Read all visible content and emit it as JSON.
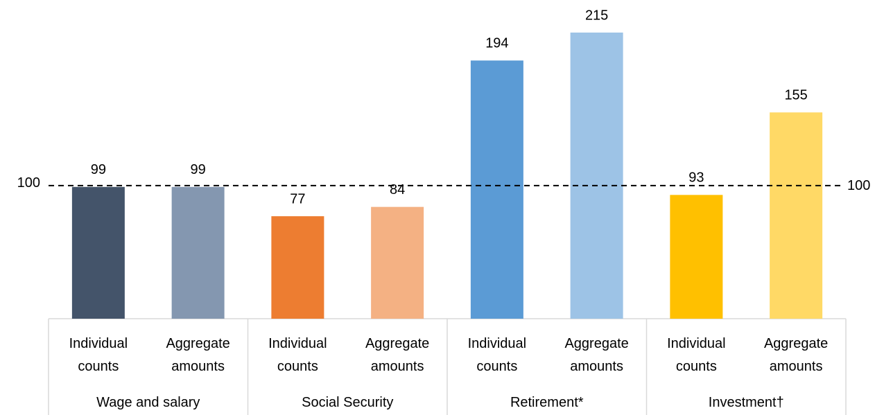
{
  "chart_data": {
    "type": "bar",
    "categories": [
      "Individual counts",
      "Aggregate amounts",
      "Individual counts",
      "Aggregate amounts",
      "Individual counts",
      "Aggregate amounts",
      "Individual counts",
      "Aggregate amounts"
    ],
    "groups": [
      "Wage and salary",
      "Social Security",
      "Retirement*",
      "Investment†"
    ],
    "values": [
      99,
      99,
      77,
      84,
      194,
      215,
      93,
      155
    ],
    "colors": [
      "#44546a",
      "#8497b0",
      "#ed7d31",
      "#f4b183",
      "#5b9bd5",
      "#9dc3e6",
      "#ffc000",
      "#ffd966"
    ],
    "reference_line": 100
  }
}
